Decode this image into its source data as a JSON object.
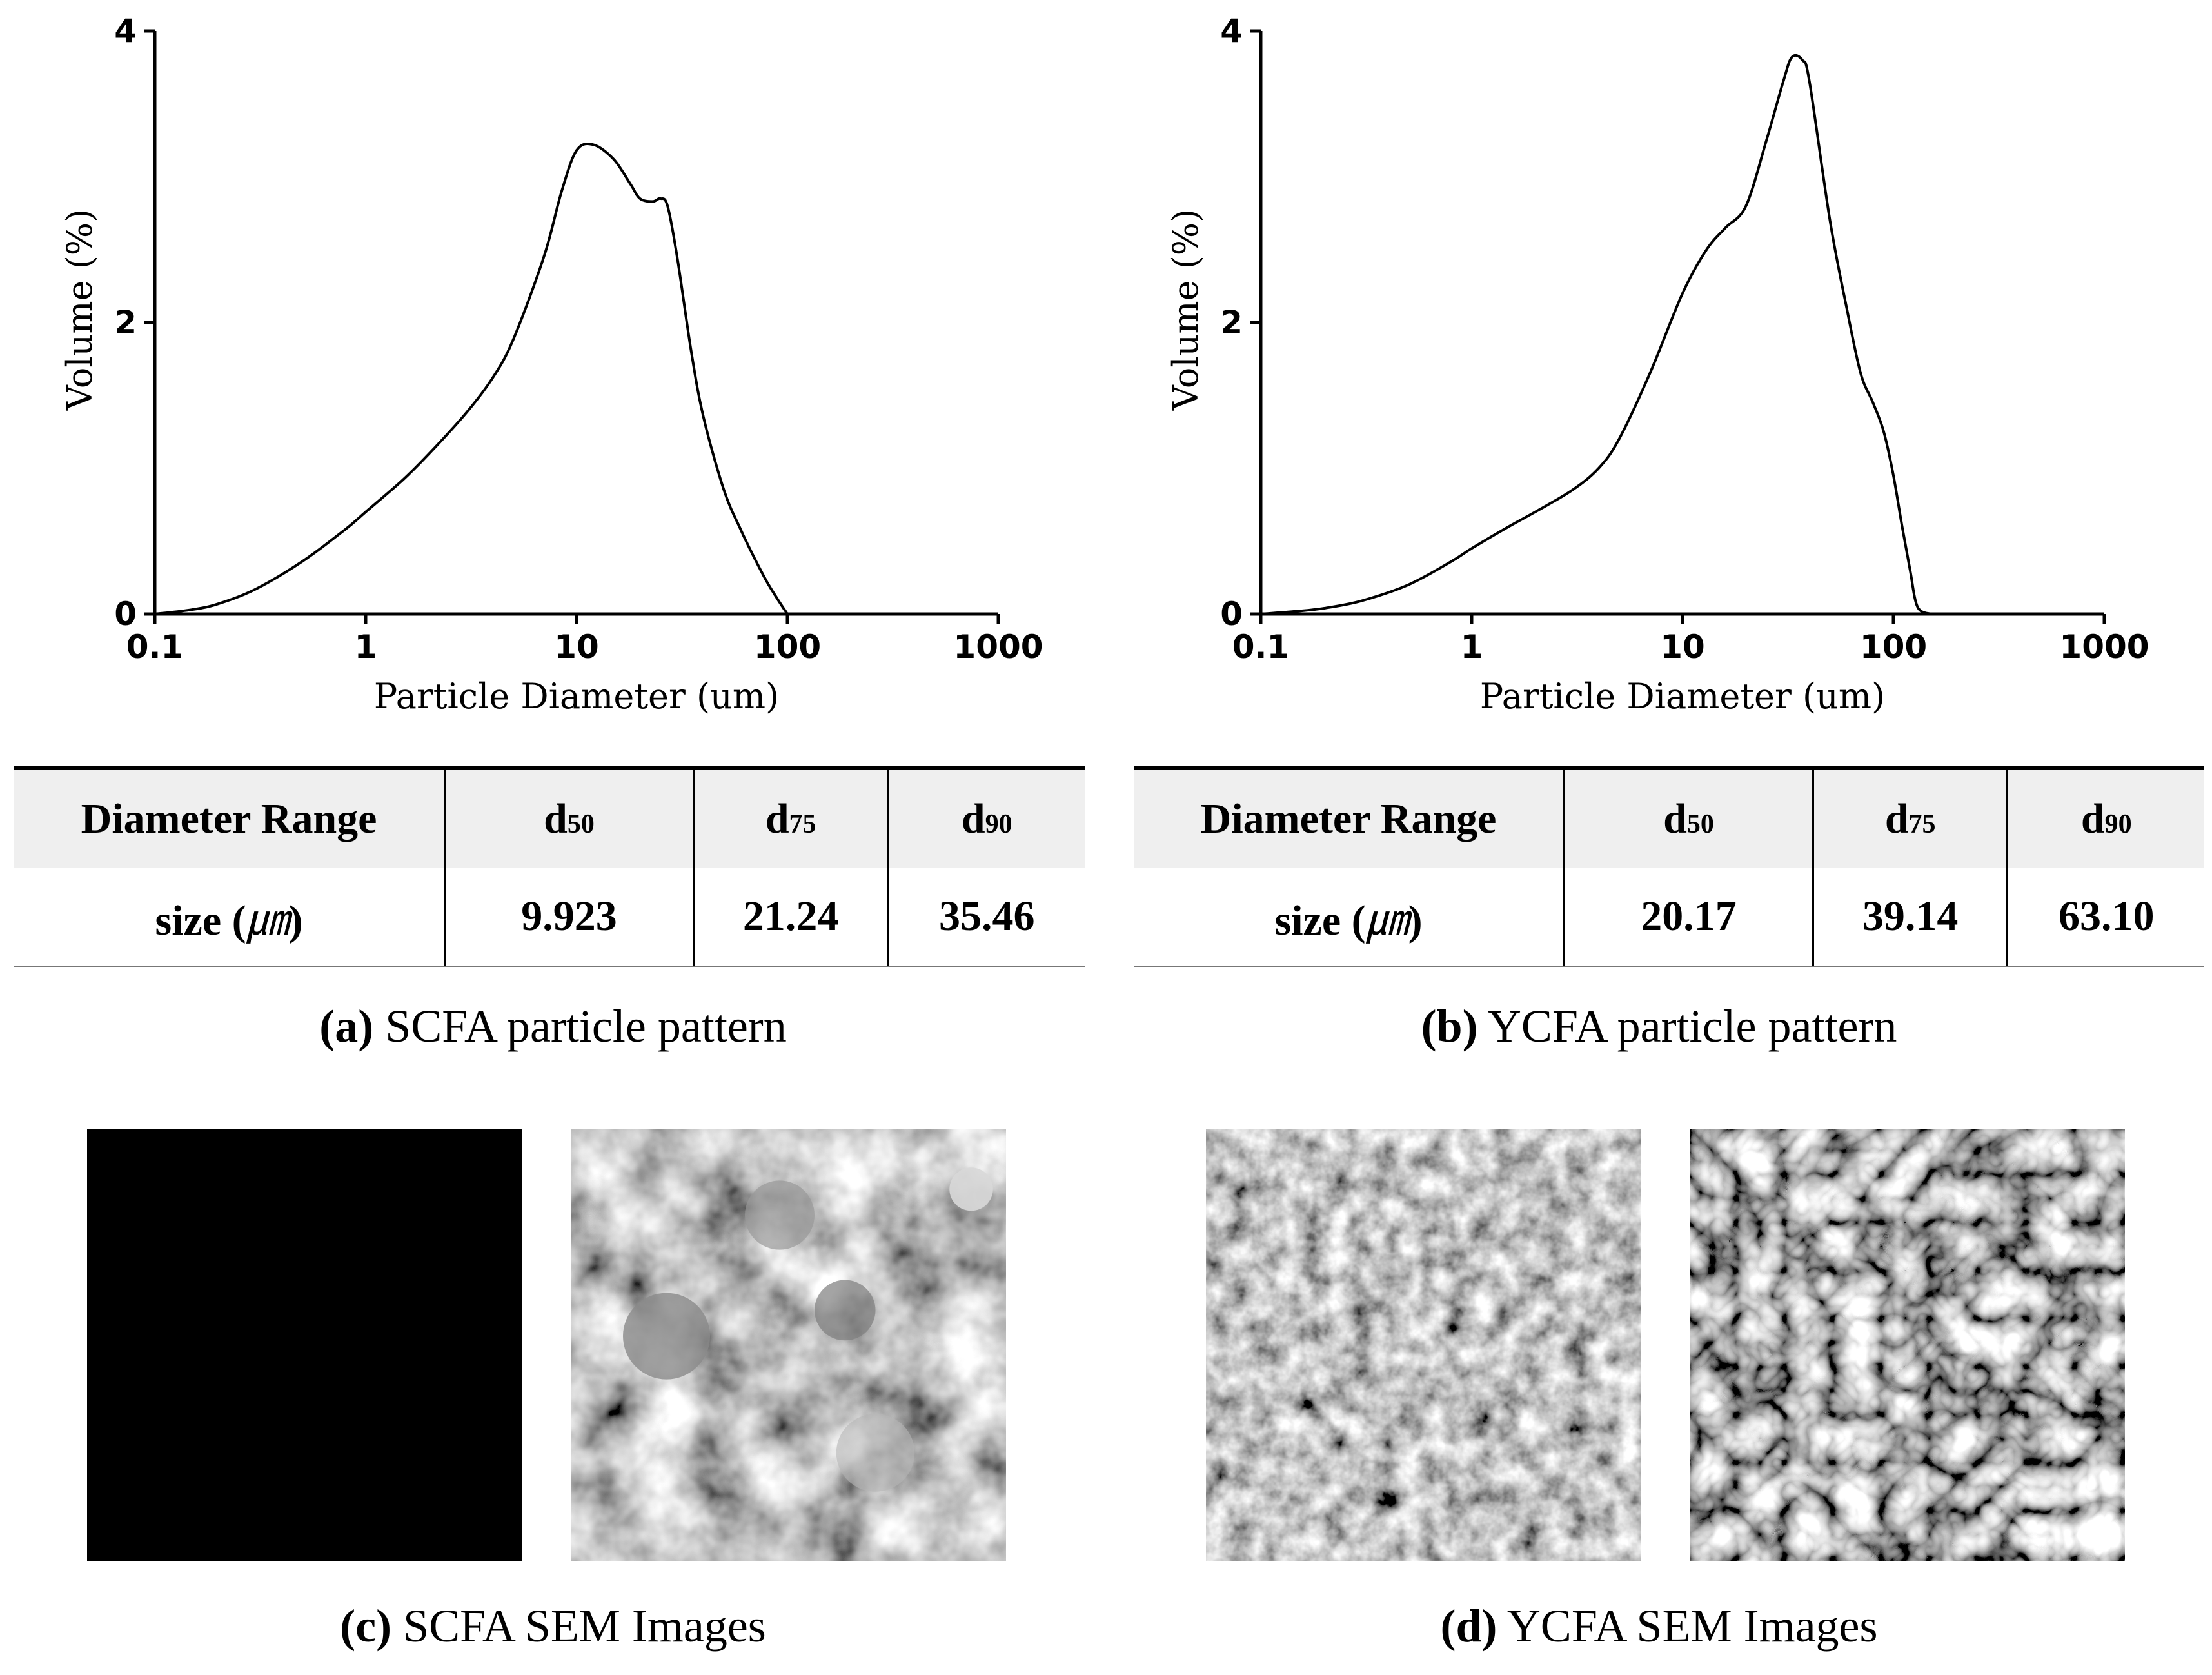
{
  "chart_data": [
    {
      "id": "a",
      "type": "line",
      "xscale": "log",
      "xlabel": "Particle Diameter (um)",
      "ylabel": "Volume (%)",
      "xlim": [
        0.1,
        1000
      ],
      "ylim": [
        0,
        4
      ],
      "x_ticks": [
        "0.1",
        "1",
        "10",
        "100",
        "1000"
      ],
      "y_ticks": [
        "0",
        "2",
        "4"
      ],
      "series": [
        {
          "name": "SCFA",
          "x": [
            0.1,
            0.15,
            0.2,
            0.3,
            0.5,
            0.8,
            1,
            1.5,
            2,
            3,
            4,
            5,
            7,
            8.5,
            10,
            12,
            15,
            18,
            20,
            23,
            25,
            27,
            30,
            35,
            40,
            50,
            60,
            70,
            80,
            90,
            100
          ],
          "y": [
            0,
            0.03,
            0.07,
            0.17,
            0.36,
            0.58,
            0.7,
            0.92,
            1.1,
            1.38,
            1.62,
            1.88,
            2.45,
            2.9,
            3.18,
            3.22,
            3.12,
            2.95,
            2.85,
            2.83,
            2.85,
            2.8,
            2.45,
            1.8,
            1.35,
            0.85,
            0.58,
            0.38,
            0.22,
            0.1,
            0.0
          ]
        }
      ]
    },
    {
      "id": "b",
      "type": "line",
      "xscale": "log",
      "xlabel": "Particle Diameter (um)",
      "ylabel": "Volume (%)",
      "xlim": [
        0.1,
        1000
      ],
      "ylim": [
        0,
        4
      ],
      "x_ticks": [
        "0.1",
        "1",
        "10",
        "100",
        "1000"
      ],
      "y_ticks": [
        "0",
        "2",
        "4"
      ],
      "series": [
        {
          "name": "YCFA",
          "x": [
            0.1,
            0.15,
            0.2,
            0.3,
            0.5,
            0.8,
            1,
            1.5,
            2,
            3,
            4,
            5,
            7,
            10,
            13,
            16,
            20,
            25,
            30,
            33,
            37,
            40,
            50,
            60,
            70,
            80,
            90,
            100,
            110,
            120,
            130,
            150
          ],
          "y": [
            0,
            0.02,
            0.04,
            0.09,
            0.2,
            0.36,
            0.45,
            0.6,
            0.7,
            0.85,
            1.0,
            1.2,
            1.65,
            2.2,
            2.5,
            2.65,
            2.8,
            3.25,
            3.65,
            3.82,
            3.8,
            3.65,
            2.7,
            2.1,
            1.65,
            1.45,
            1.25,
            0.95,
            0.6,
            0.3,
            0.05,
            0.0
          ]
        }
      ]
    }
  ],
  "tables": {
    "a": {
      "header": {
        "label": "Diameter Range",
        "d50": "d",
        "d50_sub": "50",
        "d75": "d",
        "d75_sub": "75",
        "d90": "d",
        "d90_sub": "90"
      },
      "row": {
        "label": "size (",
        "unit": "㎛",
        "label_end": ")",
        "d50": "9.923",
        "d75": "21.24",
        "d90": "35.46"
      }
    },
    "b": {
      "header": {
        "label": "Diameter Range",
        "d50": "d",
        "d50_sub": "50",
        "d75": "d",
        "d75_sub": "75",
        "d90": "d",
        "d90_sub": "90"
      },
      "row": {
        "label": "size (",
        "unit": "㎛",
        "label_end": ")",
        "d50": "20.17",
        "d75": "39.14",
        "d90": "63.10"
      }
    }
  },
  "captions": {
    "a": {
      "tag": "(a)",
      "text": " SCFA particle pattern"
    },
    "b": {
      "tag": "(b)",
      "text": " YCFA particle pattern"
    },
    "c": {
      "tag": "(c)",
      "text": " SCFA SEM Images"
    },
    "d": {
      "tag": "(d)",
      "text": " YCFA SEM Images"
    }
  }
}
